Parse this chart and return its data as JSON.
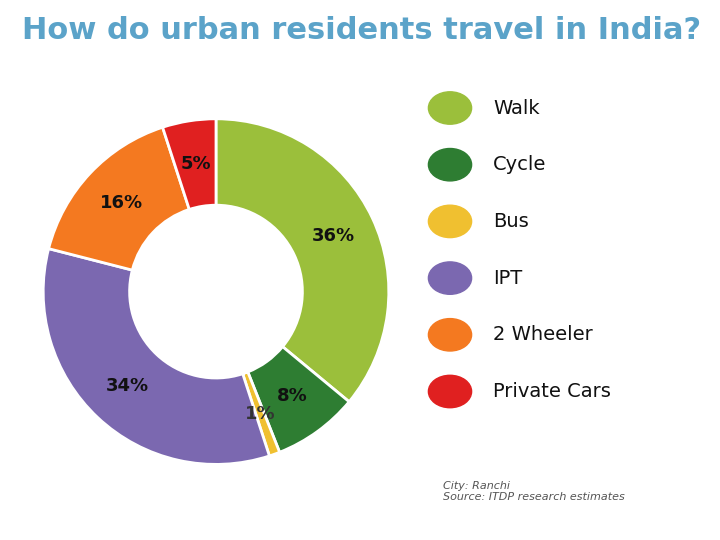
{
  "title": "How do urban residents travel in India?",
  "title_color": "#5ba3c9",
  "title_fontsize": 22,
  "slices": [
    {
      "label": "Walk",
      "value": 36,
      "color": "#9BBF3B"
    },
    {
      "label": "Cycle",
      "value": 8,
      "color": "#2E7D32"
    },
    {
      "label": "Bus",
      "value": 1,
      "color": "#F0C030"
    },
    {
      "label": "IPT",
      "value": 34,
      "color": "#7B68B0"
    },
    {
      "label": "2 Wheeler",
      "value": 16,
      "color": "#F47920"
    },
    {
      "label": "Private Cars",
      "value": 5,
      "color": "#E02020"
    }
  ],
  "legend_icons": [
    {
      "label": "Walk",
      "icon_color": "#9BBF3B"
    },
    {
      "label": "Cycle",
      "icon_color": "#2E7D32"
    },
    {
      "label": "Bus",
      "icon_color": "#F0C030"
    },
    {
      "label": "IPT",
      "icon_color": "#7B68B0"
    },
    {
      "label": "2 Wheeler",
      "icon_color": "#F47920"
    },
    {
      "label": "Private Cars",
      "icon_color": "#E02020"
    }
  ],
  "source_text": "City: Ranchi\nSource: ITDP research estimates",
  "background_color": "#FFFFFF",
  "label_fontsize": 13,
  "legend_fontsize": 14
}
